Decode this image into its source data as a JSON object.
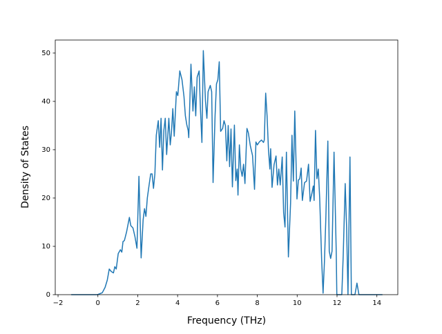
{
  "chart_data": {
    "type": "line",
    "xlabel": "Frequency (THz)",
    "ylabel": "Density of States",
    "xlim": [
      -2.14,
      15.05
    ],
    "ylim": [
      0,
      52.7
    ],
    "xticks": [
      {
        "value": -2,
        "label": "−2"
      },
      0,
      2,
      4,
      6,
      8,
      10,
      12,
      14
    ],
    "yticks": [
      0,
      10,
      20,
      30,
      40,
      50
    ],
    "series": [
      {
        "color": "#1f77b4",
        "x": [
          -1.34,
          -0.02,
          0.22,
          0.36,
          0.47,
          0.57,
          0.67,
          0.78,
          0.85,
          0.92,
          1.02,
          1.13,
          1.2,
          1.26,
          1.33,
          1.44,
          1.58,
          1.65,
          1.76,
          1.86,
          1.96,
          2.06,
          2.17,
          2.27,
          2.34,
          2.41,
          2.48,
          2.58,
          2.65,
          2.72,
          2.79,
          2.86,
          2.93,
          3.03,
          3.1,
          3.17,
          3.24,
          3.31,
          3.38,
          3.45,
          3.56,
          3.63,
          3.69,
          3.76,
          3.83,
          3.94,
          4.01,
          4.11,
          4.22,
          4.32,
          4.39,
          4.46,
          4.53,
          4.56,
          4.67,
          4.77,
          4.84,
          4.91,
          4.98,
          5.08,
          5.15,
          5.22,
          5.29,
          5.4,
          5.47,
          5.53,
          5.64,
          5.71,
          5.78,
          5.88,
          5.95,
          6.02,
          6.09,
          6.16,
          6.26,
          6.33,
          6.4,
          6.47,
          6.54,
          6.61,
          6.68,
          6.75,
          6.85,
          6.92,
          6.99,
          7.03,
          7.1,
          7.17,
          7.24,
          7.31,
          7.38,
          7.48,
          7.55,
          7.65,
          7.76,
          7.86,
          7.93,
          8.0,
          8.1,
          8.21,
          8.31,
          8.35,
          8.42,
          8.49,
          8.56,
          8.63,
          8.67,
          8.74,
          8.84,
          8.94,
          9.01,
          9.08,
          9.15,
          9.25,
          9.32,
          9.39,
          9.46,
          9.56,
          9.67,
          9.74,
          9.81,
          9.88,
          9.99,
          10.06,
          10.13,
          10.2,
          10.26,
          10.37,
          10.47,
          10.57,
          10.65,
          10.74,
          10.81,
          10.85,
          10.92,
          10.99,
          11.06,
          11.13,
          11.23,
          11.3,
          11.37,
          11.44,
          11.54,
          11.61,
          11.68,
          11.75,
          11.85,
          11.96,
          11.99,
          12.24,
          12.31,
          12.41,
          12.48,
          12.55,
          12.65,
          12.72,
          12.9,
          13.0,
          13.1,
          14.28
        ],
        "values": [
          0,
          0,
          0.4,
          1.5,
          3,
          5.3,
          4.8,
          4.5,
          5.8,
          5.3,
          8.5,
          9.3,
          8.8,
          11,
          11.2,
          13,
          16,
          14.3,
          13.8,
          12,
          9.6,
          24.5,
          7.6,
          15.5,
          17.8,
          16.2,
          20,
          23,
          25,
          25,
          22,
          25,
          33,
          36,
          30.5,
          36.5,
          25.8,
          34,
          36.5,
          29,
          36.5,
          31,
          33.5,
          38.5,
          32.8,
          42,
          41.2,
          46.3,
          44.5,
          41,
          37,
          35.2,
          34,
          32.5,
          47.7,
          38,
          43,
          37,
          45,
          46.3,
          38,
          31.5,
          50.5,
          40,
          36.5,
          42,
          43.3,
          42,
          23.2,
          37,
          43.6,
          44.5,
          48.2,
          33.8,
          34.4,
          36,
          35,
          27.7,
          35,
          26.5,
          34.3,
          22.3,
          35.1,
          23.6,
          26,
          20.6,
          31,
          26,
          24.5,
          27,
          23,
          34.4,
          33.5,
          30.8,
          28.8,
          21.8,
          31.6,
          31,
          31.6,
          32,
          31.5,
          32,
          41.7,
          37,
          30,
          26,
          30.2,
          22.2,
          26.9,
          28.7,
          22.7,
          26,
          22.7,
          28.5,
          17,
          14,
          29.5,
          7.8,
          19,
          33,
          23.5,
          38,
          19.8,
          23.7,
          24,
          26.2,
          19.5,
          23.2,
          23.5,
          27,
          19.3,
          21,
          22.5,
          19.5,
          34,
          24,
          26,
          20,
          7,
          0.3,
          7,
          16,
          31.8,
          9,
          7.5,
          9,
          29.5,
          9,
          0,
          0,
          8,
          23,
          14,
          0,
          28.5,
          0,
          0,
          2.4,
          0,
          0
        ]
      }
    ]
  }
}
